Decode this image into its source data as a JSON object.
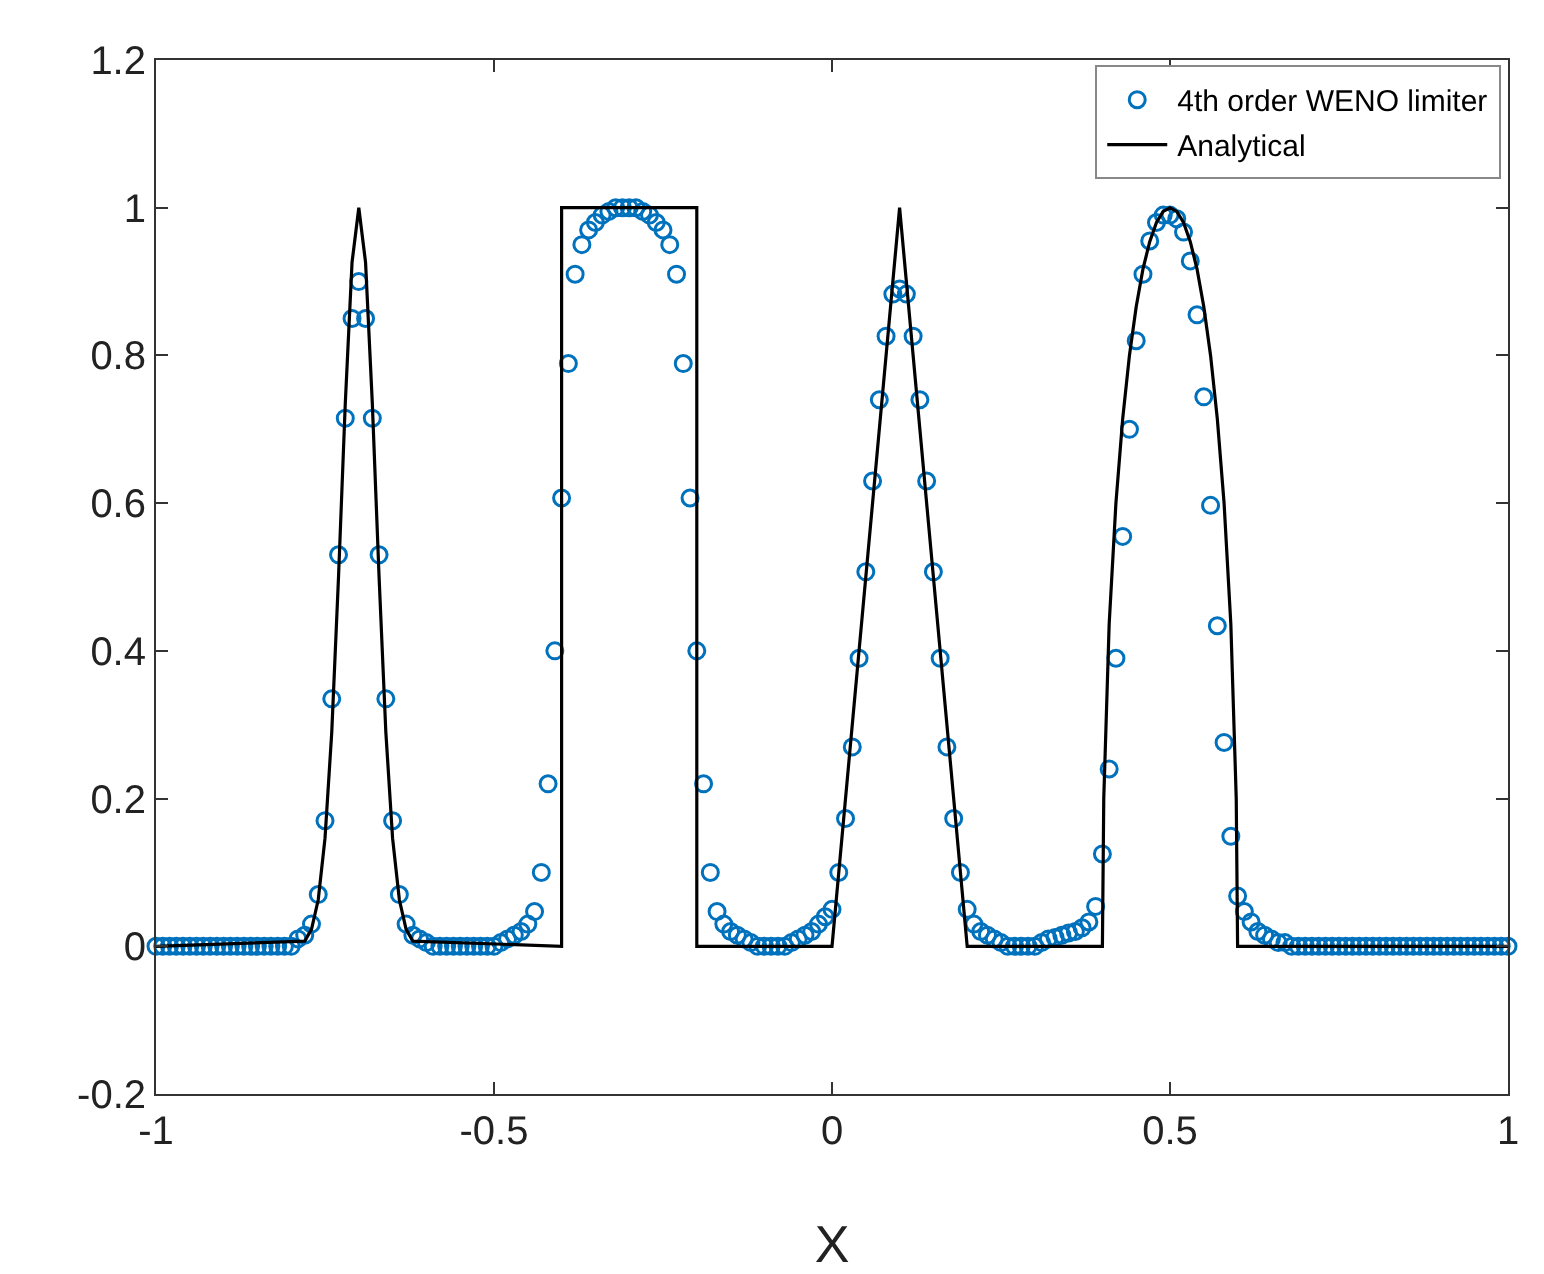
{
  "chart_data": {
    "type": "line",
    "xlabel": "X",
    "xlim": [
      -1,
      1
    ],
    "xticks": [
      -1,
      -0.5,
      0,
      0.5,
      1
    ],
    "ylim": [
      -0.2,
      1.2
    ],
    "yticks": [
      -0.2,
      0,
      0.2,
      0.4,
      0.6,
      0.8,
      1,
      1.2
    ],
    "grid": false,
    "legend": "top right",
    "series": [
      {
        "name": "4th order WENO limiter",
        "type": "scatter",
        "marker": "circle",
        "color": "#0072bd",
        "x": [
          -1,
          -0.99,
          -0.98,
          -0.97,
          -0.96,
          -0.95,
          -0.94,
          -0.93,
          -0.92,
          -0.91,
          -0.9,
          -0.89,
          -0.88,
          -0.87,
          -0.86,
          -0.85,
          -0.84,
          -0.83,
          -0.82,
          -0.81,
          -0.8,
          -0.79,
          -0.78,
          -0.77,
          -0.76,
          -0.75,
          -0.74,
          -0.73,
          -0.72,
          -0.71,
          -0.7,
          -0.69,
          -0.68,
          -0.67,
          -0.66,
          -0.65,
          -0.64,
          -0.63,
          -0.62,
          -0.61,
          -0.6,
          -0.59,
          -0.58,
          -0.57,
          -0.56,
          -0.55,
          -0.54,
          -0.53,
          -0.52,
          -0.51,
          -0.5,
          -0.49,
          -0.48,
          -0.47,
          -0.46,
          -0.45,
          -0.44,
          -0.43,
          -0.42,
          -0.41,
          -0.4,
          -0.39,
          -0.38,
          -0.37,
          -0.36,
          -0.35,
          -0.34,
          -0.33,
          -0.32,
          -0.31,
          -0.3,
          -0.29,
          -0.28,
          -0.27,
          -0.26,
          -0.25,
          -0.24,
          -0.23,
          -0.22,
          -0.21,
          -0.2,
          -0.19,
          -0.18,
          -0.17,
          -0.16,
          -0.15,
          -0.14,
          -0.13,
          -0.12,
          -0.11,
          -0.1,
          -0.09,
          -0.08,
          -0.07,
          -0.06,
          -0.05,
          -0.04,
          -0.03,
          -0.02,
          -0.01,
          0,
          0.01,
          0.02,
          0.03,
          0.04,
          0.05,
          0.06,
          0.07,
          0.08,
          0.09,
          0.1,
          0.11,
          0.12,
          0.13,
          0.14,
          0.15,
          0.16,
          0.17,
          0.18,
          0.19,
          0.2,
          0.21,
          0.22,
          0.23,
          0.24,
          0.25,
          0.26,
          0.27,
          0.28,
          0.29,
          0.3,
          0.31,
          0.32,
          0.33,
          0.34,
          0.35,
          0.36,
          0.37,
          0.38,
          0.39,
          0.4,
          0.41,
          0.42,
          0.43,
          0.44,
          0.45,
          0.46,
          0.47,
          0.48,
          0.49,
          0.5,
          0.51,
          0.52,
          0.53,
          0.54,
          0.55,
          0.56,
          0.57,
          0.58,
          0.59,
          0.6,
          0.61,
          0.62,
          0.63,
          0.64,
          0.65,
          0.66,
          0.67,
          0.68,
          0.69,
          0.7,
          0.71,
          0.72,
          0.73,
          0.74,
          0.75,
          0.76,
          0.77,
          0.78,
          0.79,
          0.8,
          0.81,
          0.82,
          0.83,
          0.84,
          0.85,
          0.86,
          0.87,
          0.88,
          0.89,
          0.9,
          0.91,
          0.92,
          0.93,
          0.94,
          0.95,
          0.96,
          0.97,
          0.98,
          0.99,
          1
        ],
        "values": [
          0,
          0,
          0,
          0,
          0,
          0,
          0,
          0,
          0,
          0,
          0,
          0,
          0,
          0,
          0,
          0,
          0,
          0,
          0,
          0,
          0,
          0.01,
          0.015,
          0.03,
          0.07,
          0.17,
          0.335,
          0.53,
          0.715,
          0.85,
          0.9,
          0.85,
          0.715,
          0.53,
          0.335,
          0.17,
          0.07,
          0.03,
          0.015,
          0.01,
          0.005,
          0,
          0,
          0,
          0,
          0,
          0,
          0,
          0,
          0,
          0,
          0.005,
          0.01,
          0.015,
          0.02,
          0.03,
          0.047,
          0.1,
          0.22,
          0.4,
          0.607,
          0.789,
          0.91,
          0.95,
          0.97,
          0.98,
          0.99,
          0.995,
          1,
          1,
          1,
          1,
          0.995,
          0.99,
          0.98,
          0.97,
          0.95,
          0.91,
          0.789,
          0.607,
          0.4,
          0.22,
          0.1,
          0.047,
          0.03,
          0.02,
          0.015,
          0.01,
          0.005,
          0,
          0,
          0,
          0,
          0,
          0.005,
          0.01,
          0.015,
          0.02,
          0.03,
          0.04,
          0.05,
          0.1,
          0.173,
          0.27,
          0.39,
          0.507,
          0.63,
          0.74,
          0.826,
          0.883,
          0.89,
          0.883,
          0.826,
          0.74,
          0.63,
          0.507,
          0.39,
          0.27,
          0.173,
          0.1,
          0.05,
          0.03,
          0.02,
          0.015,
          0.01,
          0.005,
          0,
          0,
          0,
          0,
          0,
          0.005,
          0.01,
          0.012,
          0.015,
          0.018,
          0.02,
          0.025,
          0.033,
          0.054,
          0.125,
          0.24,
          0.39,
          0.555,
          0.7,
          0.82,
          0.91,
          0.955,
          0.98,
          0.99,
          0.99,
          0.985,
          0.967,
          0.928,
          0.855,
          0.744,
          0.597,
          0.434,
          0.276,
          0.149,
          0.068,
          0.047,
          0.033,
          0.02,
          0.015,
          0.01,
          0.005,
          0.005,
          0,
          0,
          0,
          0,
          0,
          0,
          0,
          0,
          0,
          0,
          0,
          0,
          0,
          0,
          0,
          0,
          0,
          0,
          0,
          0,
          0,
          0,
          0,
          0,
          0,
          0,
          0,
          0,
          0,
          0,
          0,
          0,
          0
        ]
      },
      {
        "name": "Analytical",
        "line_style": "solid",
        "color": "#000000",
        "x": [
          -1,
          -0.78,
          -0.77,
          -0.76,
          -0.75,
          -0.74,
          -0.73,
          -0.72,
          -0.71,
          -0.7,
          -0.69,
          -0.68,
          -0.67,
          -0.66,
          -0.65,
          -0.64,
          -0.63,
          -0.62,
          -0.4,
          -0.4,
          -0.2,
          -0.2,
          0,
          0.1,
          0.2,
          0.4,
          0.402,
          0.41,
          0.42,
          0.43,
          0.44,
          0.45,
          0.46,
          0.47,
          0.48,
          0.49,
          0.5,
          0.51,
          0.52,
          0.53,
          0.54,
          0.55,
          0.56,
          0.57,
          0.58,
          0.59,
          0.598,
          0.6,
          1
        ],
        "values": [
          0,
          0.007,
          0.023,
          0.063,
          0.146,
          0.29,
          0.5,
          0.735,
          0.926,
          1,
          0.926,
          0.735,
          0.5,
          0.29,
          0.146,
          0.063,
          0.023,
          0.007,
          0,
          1,
          1,
          0,
          0,
          1,
          0,
          0,
          0.2,
          0.436,
          0.6,
          0.714,
          0.8,
          0.866,
          0.917,
          0.954,
          0.98,
          0.995,
          1,
          0.995,
          0.98,
          0.954,
          0.917,
          0.866,
          0.8,
          0.714,
          0.6,
          0.436,
          0.2,
          0,
          0
        ]
      }
    ]
  }
}
